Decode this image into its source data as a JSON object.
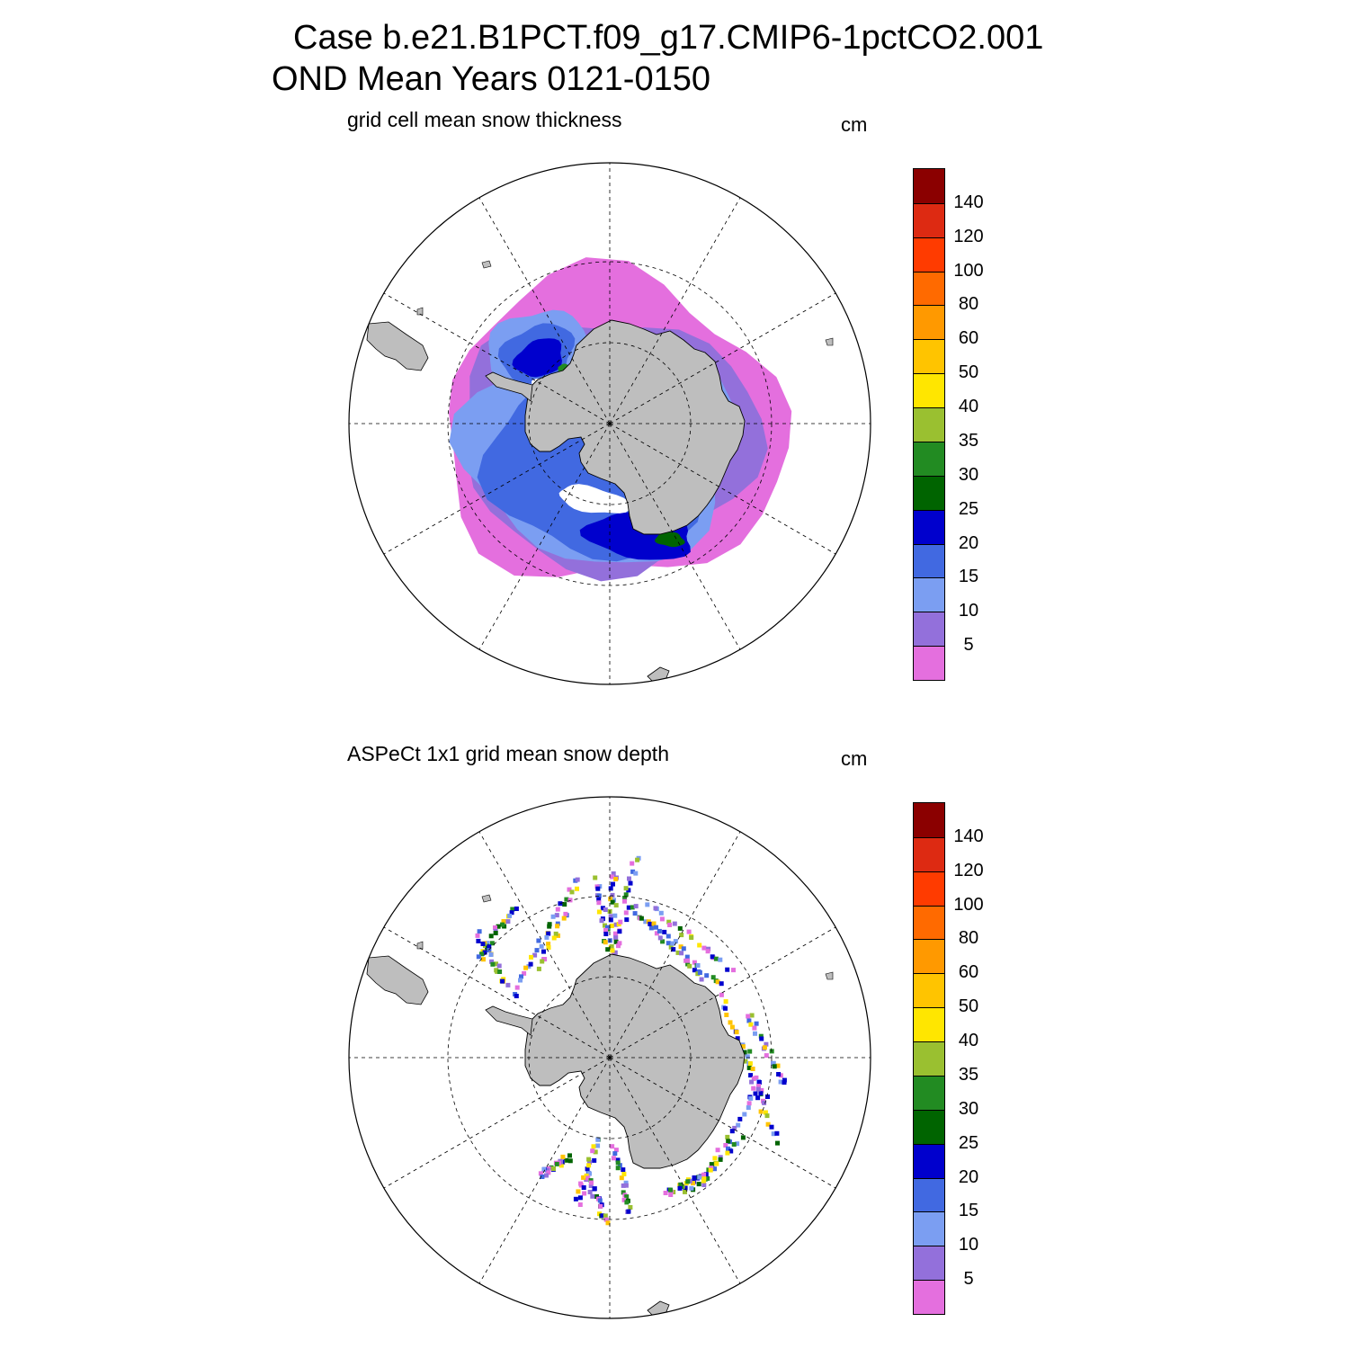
{
  "title": {
    "line1": "Case b.e21.B1PCT.f09_g17.CMIP6-1pctCO2.001",
    "line2": "OND Mean   Years 0121-0150"
  },
  "units": "cm",
  "colorbar": {
    "labels": [
      "140",
      "120",
      "100",
      "80",
      "60",
      "50",
      "40",
      "35",
      "30",
      "25",
      "20",
      "15",
      "10",
      "5"
    ],
    "colors": [
      "#8b0000",
      "#dd2a12",
      "#ff3b00",
      "#ff6a00",
      "#ff9900",
      "#ffc400",
      "#ffe600",
      "#9ac030",
      "#228b22",
      "#006400",
      "#0000cd",
      "#4169e1",
      "#7b9ef2",
      "#9370db",
      "#e46fde"
    ]
  },
  "colors": {
    "land": "#bebebe",
    "coastline": "#000000",
    "grid": "#000000"
  },
  "panels": [
    {
      "id": "model",
      "title": "grid cell mean snow thickness",
      "units": "cm"
    },
    {
      "id": "obs",
      "title": "ASPeCt 1x1 grid mean snow depth",
      "units": "cm"
    }
  ]
}
